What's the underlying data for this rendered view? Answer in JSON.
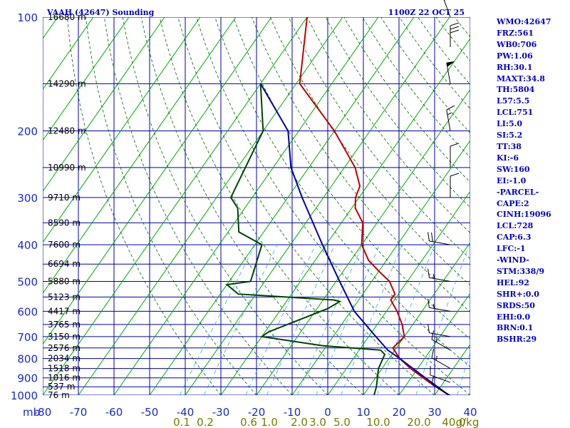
{
  "header": {
    "station": "VAAH (42647) Sounding",
    "time": "1100Z 22 OCT 25"
  },
  "chart_data": {
    "type": "line",
    "title": "VAAH (42647) Sounding",
    "subtitle": "1100Z 22 OCT 25",
    "xlabel": "",
    "ylabel": "mb",
    "xlim": [
      -80,
      40
    ],
    "ylim": [
      1000,
      100
    ],
    "y_scale": "log",
    "grid": true,
    "pressure_ticks": [
      100,
      200,
      300,
      400,
      500,
      600,
      700,
      800,
      900,
      1000
    ],
    "pressure_tick_labels": [
      "100",
      "200",
      "300",
      "400",
      "500",
      "600",
      "700",
      "800",
      "900",
      "1000"
    ],
    "temp_ticks": [
      -80,
      -70,
      -60,
      -50,
      -40,
      -30,
      -20,
      -10,
      0,
      10,
      20,
      30,
      40
    ],
    "temp_tick_labels": [
      "-80",
      "-70",
      "-60",
      "-50",
      "-40",
      "-30",
      "-20",
      "-10",
      "0",
      "10",
      "20",
      "30",
      "40"
    ],
    "mixing_ratio_labels": [
      "0.1",
      "0.2",
      "0.6",
      "1.0",
      "2.0",
      "3.0",
      "5.0",
      "10.0",
      "20.0",
      "40.0",
      "g/kg"
    ],
    "mixing_ratio_values": [
      0.1,
      0.2,
      0.6,
      1.0,
      2.0,
      3.0,
      5.0,
      10.0,
      20.0,
      40.0
    ],
    "height_levels": [
      {
        "p": 100,
        "label": "16680 m"
      },
      {
        "p": 150,
        "label": "14290 m"
      },
      {
        "p": 200,
        "label": "12480 m"
      },
      {
        "p": 250,
        "label": "10990 m"
      },
      {
        "p": 300,
        "label": "9710 m"
      },
      {
        "p": 350,
        "label": "8590 m"
      },
      {
        "p": 400,
        "label": "7600 m"
      },
      {
        "p": 450,
        "label": "6694 m"
      },
      {
        "p": 500,
        "label": "5880 m"
      },
      {
        "p": 550,
        "label": "5123 m"
      },
      {
        "p": 600,
        "label": "4417 m"
      },
      {
        "p": 650,
        "label": "3765 m"
      },
      {
        "p": 700,
        "label": "3150 m"
      },
      {
        "p": 750,
        "label": "2576 m"
      },
      {
        "p": 800,
        "label": "2034 m"
      },
      {
        "p": 850,
        "label": "1518 m"
      },
      {
        "p": 900,
        "label": "1016 m"
      },
      {
        "p": 950,
        "label": "537 m"
      },
      {
        "p": 1000,
        "label": "76 m"
      }
    ],
    "series": [
      {
        "name": "Temperature",
        "color": "#c00000",
        "points": [
          {
            "p": 1000,
            "t": 34
          },
          {
            "p": 925,
            "t": 26
          },
          {
            "p": 850,
            "t": 18
          },
          {
            "p": 800,
            "t": 13
          },
          {
            "p": 750,
            "t": 9
          },
          {
            "p": 700,
            "t": 10
          },
          {
            "p": 650,
            "t": 7
          },
          {
            "p": 600,
            "t": 3
          },
          {
            "p": 560,
            "t": -1
          },
          {
            "p": 540,
            "t": -1
          },
          {
            "p": 500,
            "t": -5
          },
          {
            "p": 470,
            "t": -10
          },
          {
            "p": 440,
            "t": -15
          },
          {
            "p": 400,
            "t": -20
          },
          {
            "p": 350,
            "t": -24
          },
          {
            "p": 320,
            "t": -29
          },
          {
            "p": 300,
            "t": -31
          },
          {
            "p": 280,
            "t": -32
          },
          {
            "p": 250,
            "t": -37
          },
          {
            "p": 200,
            "t": -50
          },
          {
            "p": 150,
            "t": -69
          },
          {
            "p": 100,
            "t": -80
          }
        ]
      },
      {
        "name": "Dewpoint",
        "color": "#004400",
        "points": [
          {
            "p": 1000,
            "t": 13
          },
          {
            "p": 950,
            "t": 12
          },
          {
            "p": 850,
            "t": 9
          },
          {
            "p": 780,
            "t": 8
          },
          {
            "p": 760,
            "t": 6
          },
          {
            "p": 740,
            "t": -11
          },
          {
            "p": 700,
            "t": -30
          },
          {
            "p": 680,
            "t": -29
          },
          {
            "p": 590,
            "t": -17
          },
          {
            "p": 565,
            "t": -15
          },
          {
            "p": 560,
            "t": -17
          },
          {
            "p": 540,
            "t": -45
          },
          {
            "p": 510,
            "t": -50
          },
          {
            "p": 500,
            "t": -44
          },
          {
            "p": 400,
            "t": -48
          },
          {
            "p": 370,
            "t": -57
          },
          {
            "p": 320,
            "t": -62
          },
          {
            "p": 300,
            "t": -66
          },
          {
            "p": 200,
            "t": -70
          },
          {
            "p": 150,
            "t": -80
          }
        ]
      },
      {
        "name": "Parcel",
        "color": "#0000aa",
        "points": [
          {
            "p": 1000,
            "t": 34
          },
          {
            "p": 900,
            "t": 24
          },
          {
            "p": 800,
            "t": 13
          },
          {
            "p": 760,
            "t": 8
          },
          {
            "p": 700,
            "t": 2
          },
          {
            "p": 600,
            "t": -9
          },
          {
            "p": 500,
            "t": -19
          },
          {
            "p": 400,
            "t": -31
          },
          {
            "p": 300,
            "t": -46
          },
          {
            "p": 250,
            "t": -55
          },
          {
            "p": 200,
            "t": -63
          },
          {
            "p": 150,
            "t": -80
          }
        ]
      }
    ],
    "winds": [
      {
        "p": 1000,
        "dir": 300,
        "spd": 10
      },
      {
        "p": 925,
        "dir": 290,
        "spd": 10
      },
      {
        "p": 850,
        "dir": 300,
        "spd": 15
      },
      {
        "p": 760,
        "dir": 300,
        "spd": 15
      },
      {
        "p": 700,
        "dir": 280,
        "spd": 10
      },
      {
        "p": 600,
        "dir": 280,
        "spd": 15
      },
      {
        "p": 500,
        "dir": 280,
        "spd": 15
      },
      {
        "p": 400,
        "dir": 280,
        "spd": 20
      },
      {
        "p": 300,
        "dir": 0,
        "spd": 10
      },
      {
        "p": 250,
        "dir": 0,
        "spd": 10
      },
      {
        "p": 200,
        "dir": 350,
        "spd": 15
      },
      {
        "p": 150,
        "dir": 350,
        "spd": 50
      },
      {
        "p": 120,
        "dir": 0,
        "spd": 30
      },
      {
        "p": 100,
        "dir": 340,
        "spd": 20
      }
    ],
    "colors": {
      "isobar": "#0000aa",
      "isotherm": "#00aa00",
      "dry_adiabat": "#006600",
      "mixing_ratio": "#33aadd"
    }
  },
  "indices": [
    "WMO:42647",
    "FRZ:561",
    "WB0:706",
    "PW:1.06",
    "RH:30.1",
    "MAXT:34.8",
    "TH:5804",
    "L57:5.5",
    "LCL:751",
    "LI:5.0",
    "SI:5.2",
    "TT:38",
    "KI:-6",
    "SW:160",
    "EI:-1.0",
    "-PARCEL-",
    "CAPE:2",
    "CINH:19096",
    "LCL:728",
    "CAP:6.3",
    "LFC:-1",
    "-WIND-",
    "STM:338/9",
    "HEL:92",
    "SHR+:0.0",
    "SRDS:50",
    "EHI:0.0",
    "BRN:0.1",
    "BSHR:29"
  ]
}
